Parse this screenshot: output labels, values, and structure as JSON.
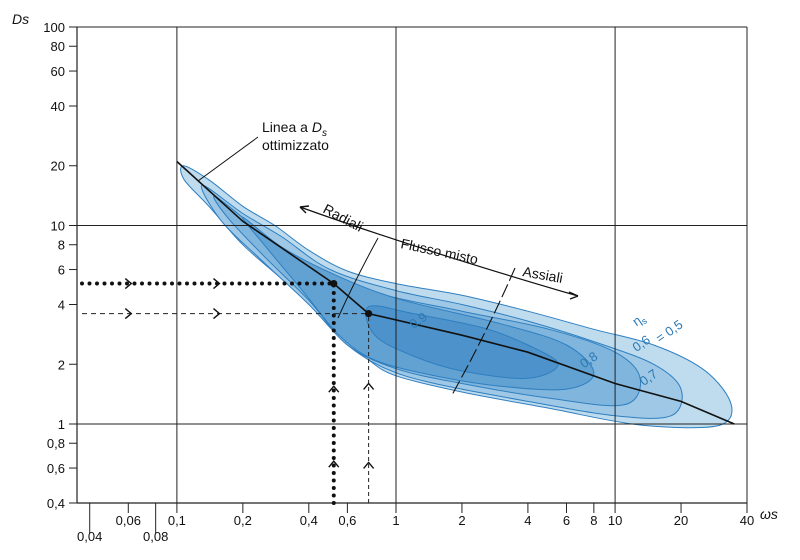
{
  "chart_data": {
    "type": "line",
    "xscale": "log",
    "yscale": "log",
    "xlim": [
      0.035,
      40
    ],
    "ylim": [
      0.4,
      100
    ],
    "grid": true,
    "xlabel": "ωs",
    "ylabel": "Ds",
    "x_ticks": [
      {
        "value": 0.04,
        "label": "0,04",
        "row": "low"
      },
      {
        "value": 0.06,
        "label": "0,06",
        "row": "high"
      },
      {
        "value": 0.08,
        "label": "0,08",
        "row": "low"
      },
      {
        "value": 0.1,
        "label": "0,1",
        "row": "high"
      },
      {
        "value": 0.2,
        "label": "0,2",
        "row": "high"
      },
      {
        "value": 0.4,
        "label": "0,4",
        "row": "high"
      },
      {
        "value": 0.6,
        "label": "0,6",
        "row": "high"
      },
      {
        "value": 1,
        "label": "1",
        "row": "high"
      },
      {
        "value": 2,
        "label": "2",
        "row": "high"
      },
      {
        "value": 4,
        "label": "4",
        "row": "high"
      },
      {
        "value": 6,
        "label": "6",
        "row": "high"
      },
      {
        "value": 8,
        "label": "8",
        "row": "high"
      },
      {
        "value": 10,
        "label": "10",
        "row": "high"
      },
      {
        "value": 20,
        "label": "20",
        "row": "high"
      },
      {
        "value": 40,
        "label": "40",
        "row": "high"
      }
    ],
    "x_gridlines": [
      0.1,
      1,
      10
    ],
    "y_ticks": [
      {
        "value": 0.4,
        "label": "0,4"
      },
      {
        "value": 0.6,
        "label": "0,6"
      },
      {
        "value": 0.8,
        "label": "0,8"
      },
      {
        "value": 1,
        "label": "1"
      },
      {
        "value": 2,
        "label": "2"
      },
      {
        "value": 4,
        "label": "4"
      },
      {
        "value": 6,
        "label": "6"
      },
      {
        "value": 8,
        "label": "8"
      },
      {
        "value": 10,
        "label": "10"
      },
      {
        "value": 20,
        "label": "20"
      },
      {
        "value": 40,
        "label": "40"
      },
      {
        "value": 60,
        "label": "60"
      },
      {
        "value": 80,
        "label": "80"
      },
      {
        "value": 100,
        "label": "100"
      }
    ],
    "y_gridlines": [
      1,
      10,
      100
    ],
    "optimal_line": {
      "points": [
        [
          0.1,
          21
        ],
        [
          0.2,
          10.5
        ],
        [
          0.52,
          5.1
        ],
        [
          0.75,
          3.6
        ],
        [
          2,
          2.8
        ],
        [
          4,
          2.3
        ],
        [
          10,
          1.6
        ],
        [
          20,
          1.3
        ],
        [
          35,
          1.0
        ]
      ]
    },
    "efficiency_regions": [
      {
        "eta": "0,5",
        "color": "#bfdcef",
        "points": [
          [
            0.107,
            20
          ],
          [
            0.14,
            17
          ],
          [
            0.2,
            12.5
          ],
          [
            0.28,
            10
          ],
          [
            0.4,
            7.5
          ],
          [
            0.6,
            5.9
          ],
          [
            1,
            5.1
          ],
          [
            2,
            4.45
          ],
          [
            4,
            3.7
          ],
          [
            8,
            3.0
          ],
          [
            15,
            2.5
          ],
          [
            25,
            1.9
          ],
          [
            33,
            1.35
          ],
          [
            33,
            1.05
          ],
          [
            25,
            0.96
          ],
          [
            12,
            1.0
          ],
          [
            5,
            1.2
          ],
          [
            2,
            1.45
          ],
          [
            1,
            1.75
          ],
          [
            0.75,
            2.1
          ],
          [
            0.6,
            2.6
          ],
          [
            0.45,
            3.6
          ],
          [
            0.3,
            5.4
          ],
          [
            0.2,
            8
          ],
          [
            0.14,
            12.5
          ],
          [
            0.108,
            17
          ]
        ]
      },
      {
        "eta": "0,6",
        "color": "#9ec8e5",
        "points": [
          [
            0.13,
            16
          ],
          [
            0.2,
            11.5
          ],
          [
            0.3,
            8.8
          ],
          [
            0.5,
            6
          ],
          [
            1,
            4.7
          ],
          [
            2,
            4.0
          ],
          [
            4,
            3.3
          ],
          [
            8,
            2.6
          ],
          [
            15,
            2.0
          ],
          [
            20,
            1.5
          ],
          [
            18,
            1.1
          ],
          [
            10,
            1.1
          ],
          [
            4,
            1.3
          ],
          [
            1.5,
            1.6
          ],
          [
            0.9,
            1.9
          ],
          [
            0.6,
            2.5
          ],
          [
            0.4,
            4
          ],
          [
            0.25,
            6.5
          ],
          [
            0.16,
            10.5
          ]
        ]
      },
      {
        "eta": "0,7",
        "color": "#80b6dd",
        "points": [
          [
            0.15,
            14
          ],
          [
            0.25,
            9
          ],
          [
            0.4,
            6.3
          ],
          [
            0.8,
            4.6
          ],
          [
            2,
            3.7
          ],
          [
            5,
            3.0
          ],
          [
            10,
            2.3
          ],
          [
            13,
            1.7
          ],
          [
            11,
            1.25
          ],
          [
            5,
            1.35
          ],
          [
            2,
            1.6
          ],
          [
            1,
            1.9
          ],
          [
            0.6,
            2.5
          ],
          [
            0.4,
            4.2
          ],
          [
            0.25,
            7
          ],
          [
            0.17,
            11
          ]
        ]
      },
      {
        "eta": "0,8",
        "color": "#62a2d3",
        "points": [
          [
            0.2,
            11
          ],
          [
            0.3,
            7.8
          ],
          [
            0.5,
            5.8
          ],
          [
            1,
            4.3
          ],
          [
            3,
            3.2
          ],
          [
            6,
            2.5
          ],
          [
            8,
            1.8
          ],
          [
            6,
            1.5
          ],
          [
            3,
            1.55
          ],
          [
            1.5,
            1.75
          ],
          [
            0.8,
            2.1
          ],
          [
            0.55,
            2.8
          ],
          [
            0.38,
            4.6
          ],
          [
            0.25,
            8
          ]
        ]
      },
      {
        "eta": "0,9",
        "color": "#4d92ca",
        "points": [
          [
            0.75,
            3.9
          ],
          [
            1.2,
            3.6
          ],
          [
            2.5,
            3.05
          ],
          [
            4,
            2.5
          ],
          [
            5.5,
            2.0
          ],
          [
            4,
            1.7
          ],
          [
            2,
            1.85
          ],
          [
            1.2,
            2.2
          ],
          [
            0.8,
            2.8
          ]
        ]
      }
    ],
    "efficiency_labels": [
      {
        "text": "η",
        "sub": "s",
        "x": 12.5,
        "y": 3.1
      },
      {
        "text": "= 0,5",
        "x": 16,
        "y": 2.55
      },
      {
        "text": "0,6",
        "x": 12.5,
        "y": 2.3
      },
      {
        "text": "0,7",
        "x": 13.5,
        "y": 1.55
      },
      {
        "text": "0,8",
        "x": 7.2,
        "y": 1.9
      },
      {
        "text": "0,9",
        "x": 1.2,
        "y": 3.0
      }
    ],
    "arrows_thick": {
      "horizontal_y": 5.1,
      "horizontal_x": [
        0.035,
        0.52
      ],
      "vertical_x": 0.52,
      "vertical_y": [
        0.4,
        5.1
      ],
      "point": [
        0.52,
        5.1
      ]
    },
    "arrows_thin": {
      "horizontal_y": 3.6,
      "horizontal_x": [
        0.035,
        0.75
      ],
      "vertical_x": 0.75,
      "vertical_y": [
        0.4,
        3.6
      ],
      "point": [
        0.75,
        3.6
      ]
    },
    "annotations": [
      {
        "id": "linea",
        "lines": [
          "Linea a ",
          "ottimizzato"
        ],
        "symbol": "D",
        "symbol_sub": "s"
      },
      {
        "id": "radiali",
        "text": "Radiali"
      },
      {
        "id": "flusso",
        "text": "Flusso misto"
      },
      {
        "id": "assiali",
        "text": "Assiali"
      }
    ]
  }
}
